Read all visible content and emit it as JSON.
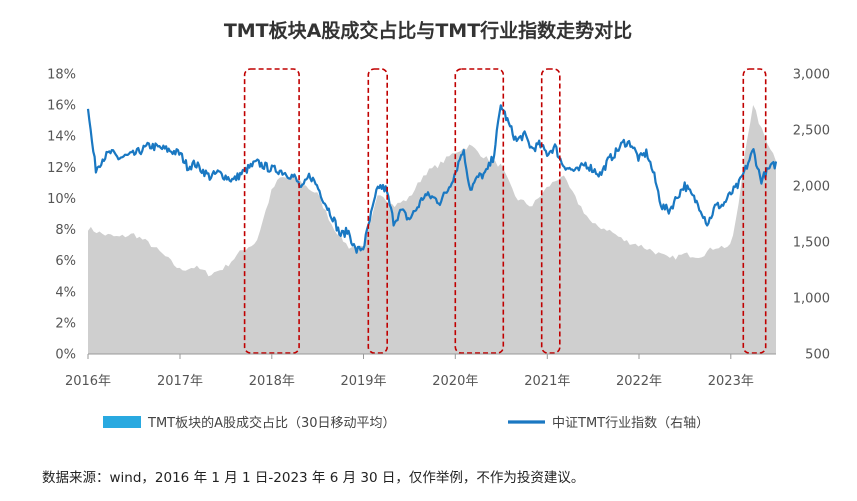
{
  "chart_data": {
    "type": "area+line",
    "title": "TMT板块A股成交占比与TMT行业指数走势对比",
    "x_ticks": [
      "2016年",
      "2017年",
      "2018年",
      "2019年",
      "2020年",
      "2021年",
      "2022年",
      "2023年"
    ],
    "x_range": [
      "2016-01-01",
      "2023-06-30"
    ],
    "y_left": {
      "ticks": [
        "0%",
        "2%",
        "4%",
        "6%",
        "8%",
        "10%",
        "12%",
        "14%",
        "16%",
        "18%"
      ],
      "range": [
        0,
        18
      ]
    },
    "y_right": {
      "ticks": [
        "500",
        "1,000",
        "1,500",
        "2,000",
        "2,500",
        "3,000"
      ],
      "range": [
        500,
        3000
      ]
    },
    "grid": false,
    "legend_position": "bottom",
    "series": [
      {
        "name": "TMT板块的A股成交占比（30日移动平均）",
        "type": "area",
        "axis": "left",
        "color": "#cfcfcf",
        "legend_color": "#29a9e0",
        "points": [
          [
            "2016-01-01",
            8.1
          ],
          [
            "2016-03-01",
            7.7
          ],
          [
            "2016-05-01",
            7.5
          ],
          [
            "2016-07-01",
            7.7
          ],
          [
            "2016-09-01",
            7.1
          ],
          [
            "2016-11-01",
            6.3
          ],
          [
            "2017-01-01",
            5.4
          ],
          [
            "2017-03-01",
            5.6
          ],
          [
            "2017-05-01",
            5.1
          ],
          [
            "2017-07-01",
            5.6
          ],
          [
            "2017-09-01",
            6.6
          ],
          [
            "2017-11-01",
            7.2
          ],
          [
            "2018-01-01",
            10.5
          ],
          [
            "2018-02-01",
            11.3
          ],
          [
            "2018-04-01",
            11.4
          ],
          [
            "2018-06-01",
            10.6
          ],
          [
            "2018-07-01",
            10.3
          ],
          [
            "2018-09-01",
            8.2
          ],
          [
            "2018-11-01",
            6.9
          ],
          [
            "2019-01-01",
            6.8
          ],
          [
            "2019-02-01",
            8.5
          ],
          [
            "2019-03-01",
            10.5
          ],
          [
            "2019-05-01",
            9.5
          ],
          [
            "2019-07-01",
            10.0
          ],
          [
            "2019-09-01",
            11.6
          ],
          [
            "2019-11-01",
            12.2
          ],
          [
            "2020-01-01",
            13.0
          ],
          [
            "2020-03-01",
            13.4
          ],
          [
            "2020-05-01",
            12.6
          ],
          [
            "2020-07-01",
            12.1
          ],
          [
            "2020-08-01",
            11.0
          ],
          [
            "2020-09-01",
            10.0
          ],
          [
            "2020-11-01",
            9.5
          ],
          [
            "2021-01-01",
            10.7
          ],
          [
            "2021-03-01",
            11.5
          ],
          [
            "2021-05-01",
            9.8
          ],
          [
            "2021-07-01",
            8.3
          ],
          [
            "2021-09-01",
            8.0
          ],
          [
            "2021-11-01",
            7.3
          ],
          [
            "2022-01-01",
            7.0
          ],
          [
            "2022-03-01",
            6.6
          ],
          [
            "2022-05-01",
            6.1
          ],
          [
            "2022-07-01",
            6.4
          ],
          [
            "2022-09-01",
            6.3
          ],
          [
            "2022-11-01",
            6.9
          ],
          [
            "2023-01-01",
            6.9
          ],
          [
            "2023-02-01",
            9.5
          ],
          [
            "2023-03-01",
            13.4
          ],
          [
            "2023-04-01",
            16.0
          ],
          [
            "2023-05-01",
            14.5
          ],
          [
            "2023-06-30",
            12.5
          ]
        ]
      },
      {
        "name": "中证TMT行业指数（右轴）",
        "type": "line",
        "axis": "right",
        "color": "#1a78c2",
        "points": [
          [
            "2016-01-01",
            2720
          ],
          [
            "2016-01-15",
            2420
          ],
          [
            "2016-02-01",
            2150
          ],
          [
            "2016-03-01",
            2250
          ],
          [
            "2016-04-01",
            2300
          ],
          [
            "2016-05-01",
            2250
          ],
          [
            "2016-07-01",
            2280
          ],
          [
            "2016-09-01",
            2360
          ],
          [
            "2016-11-01",
            2330
          ],
          [
            "2017-01-01",
            2290
          ],
          [
            "2017-02-01",
            2170
          ],
          [
            "2017-03-01",
            2200
          ],
          [
            "2017-05-01",
            2080
          ],
          [
            "2017-06-01",
            2120
          ],
          [
            "2017-08-01",
            2050
          ],
          [
            "2017-09-01",
            2110
          ],
          [
            "2017-11-01",
            2210
          ],
          [
            "2018-01-01",
            2150
          ],
          [
            "2018-02-01",
            2140
          ],
          [
            "2018-04-01",
            2080
          ],
          [
            "2018-05-01",
            1970
          ],
          [
            "2018-06-01",
            2100
          ],
          [
            "2018-07-01",
            2000
          ],
          [
            "2018-08-01",
            1850
          ],
          [
            "2018-09-01",
            1720
          ],
          [
            "2018-10-01",
            1560
          ],
          [
            "2018-11-01",
            1600
          ],
          [
            "2018-12-01",
            1420
          ],
          [
            "2019-01-01",
            1450
          ],
          [
            "2019-02-01",
            1750
          ],
          [
            "2019-03-01",
            2000
          ],
          [
            "2019-04-01",
            1970
          ],
          [
            "2019-05-01",
            1680
          ],
          [
            "2019-06-01",
            1780
          ],
          [
            "2019-07-01",
            1700
          ],
          [
            "2019-08-01",
            1800
          ],
          [
            "2019-09-01",
            1920
          ],
          [
            "2019-10-01",
            1900
          ],
          [
            "2019-11-01",
            1860
          ],
          [
            "2019-12-01",
            1960
          ],
          [
            "2020-01-01",
            2120
          ],
          [
            "2020-02-01",
            2330
          ],
          [
            "2020-03-01",
            1970
          ],
          [
            "2020-04-01",
            2080
          ],
          [
            "2020-05-01",
            2110
          ],
          [
            "2020-06-01",
            2260
          ],
          [
            "2020-07-01",
            2730
          ],
          [
            "2020-08-01",
            2550
          ],
          [
            "2020-09-01",
            2400
          ],
          [
            "2020-10-01",
            2460
          ],
          [
            "2020-11-01",
            2330
          ],
          [
            "2020-12-01",
            2370
          ],
          [
            "2021-01-01",
            2290
          ],
          [
            "2021-02-01",
            2350
          ],
          [
            "2021-03-01",
            2200
          ],
          [
            "2021-04-01",
            2150
          ],
          [
            "2021-05-01",
            2130
          ],
          [
            "2021-06-01",
            2200
          ],
          [
            "2021-07-01",
            2150
          ],
          [
            "2021-08-01",
            2100
          ],
          [
            "2021-09-01",
            2230
          ],
          [
            "2021-10-01",
            2300
          ],
          [
            "2021-11-01",
            2390
          ],
          [
            "2021-12-01",
            2380
          ],
          [
            "2022-01-01",
            2240
          ],
          [
            "2022-02-01",
            2300
          ],
          [
            "2022-03-01",
            2100
          ],
          [
            "2022-04-01",
            1820
          ],
          [
            "2022-05-01",
            1780
          ],
          [
            "2022-06-01",
            1900
          ],
          [
            "2022-07-01",
            2010
          ],
          [
            "2022-08-01",
            1910
          ],
          [
            "2022-09-01",
            1810
          ],
          [
            "2022-10-01",
            1660
          ],
          [
            "2022-11-01",
            1820
          ],
          [
            "2022-12-01",
            1830
          ],
          [
            "2023-01-01",
            1930
          ],
          [
            "2023-02-01",
            2010
          ],
          [
            "2023-03-01",
            2150
          ],
          [
            "2023-04-01",
            2320
          ],
          [
            "2023-05-01",
            2050
          ],
          [
            "2023-06-01",
            2150
          ],
          [
            "2023-06-30",
            2200
          ]
        ]
      }
    ],
    "highlight_periods": [
      [
        "2017-09-15",
        "2018-04-20"
      ],
      [
        "2019-01-20",
        "2019-04-05"
      ],
      [
        "2020-01-01",
        "2020-07-10"
      ],
      [
        "2020-12-10",
        "2021-02-20"
      ],
      [
        "2023-02-20",
        "2023-05-20"
      ]
    ],
    "highlight_color": "#c00000"
  },
  "footer": {
    "source_text": "数据来源：wind，2016 年 1 月 1 日-2023 年 6 月 30 日，仅作举例，不作为投资建议。"
  }
}
